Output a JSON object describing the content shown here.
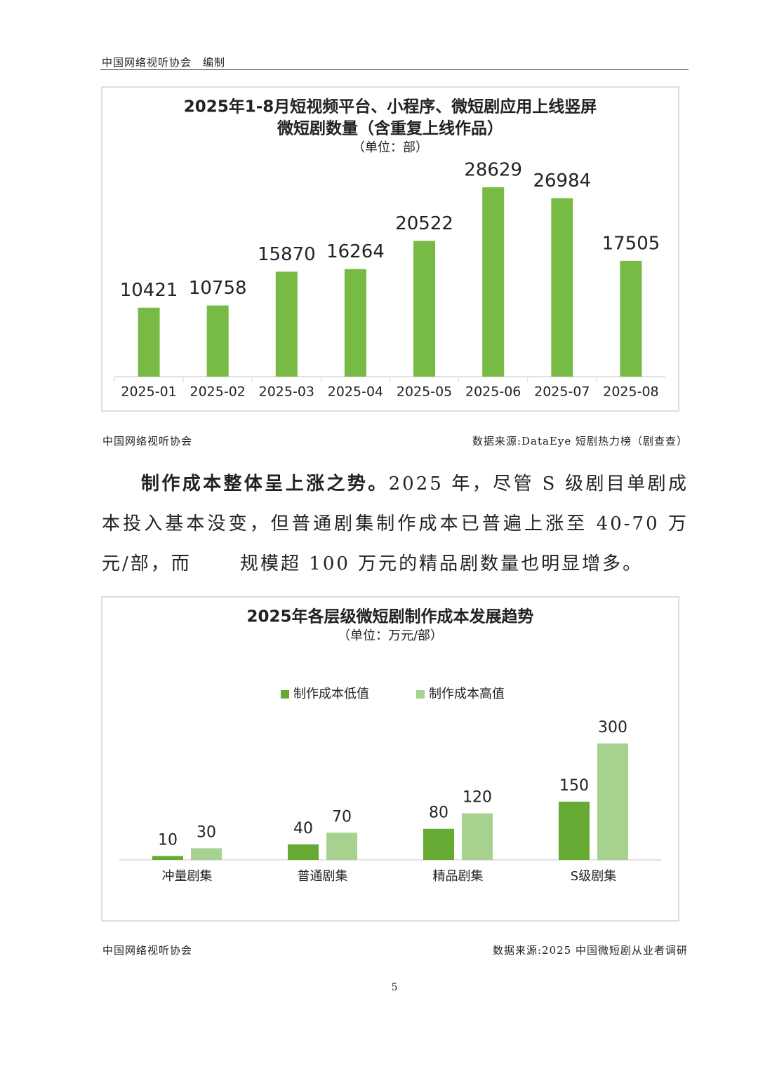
{
  "header": "中国网络视听协会　编制",
  "chart_data": [
    {
      "type": "bar",
      "title": [
        "2025年1-8月短视频平台、小程序、微短剧应用上线竖屏",
        "微短剧数量（含重复上线作品）"
      ],
      "subtitle": "（单位：部）",
      "categories": [
        "2025-01",
        "2025-02",
        "2025-03",
        "2025-04",
        "2025-05",
        "2025-06",
        "2025-07",
        "2025-08"
      ],
      "values": [
        10421,
        10758,
        15870,
        16264,
        20522,
        28629,
        26984,
        17505
      ],
      "color": "#77bb44"
    },
    {
      "type": "bar",
      "title": [
        "2025年各层级微短剧制作成本发展趋势"
      ],
      "subtitle": "（单位：万元/部）",
      "categories": [
        "冲量剧集",
        "普通剧集",
        "精品剧集",
        "S级剧集"
      ],
      "series": [
        {
          "name": "制作成本低值",
          "color": "#66aa33",
          "values": [
            10,
            40,
            80,
            150
          ]
        },
        {
          "name": "制作成本高值",
          "color": "#a6d18e",
          "values": [
            30,
            70,
            120,
            300
          ]
        }
      ],
      "legend": "top"
    }
  ],
  "captions": [
    {
      "org": "中国网络视听协会",
      "source": "数据来源:DataEye 短剧热力榜（剧查查）"
    },
    {
      "org": "中国网络视听协会",
      "source": "数据来源:2025 中国微短剧从业者调研"
    }
  ],
  "paragraph": {
    "lead": "制作成本整体呈上涨之势。",
    "body": "2025 年，尽管 S 级剧目单剧成本投入基本没变，但普通剧集制作成本已普遍上涨至 40-70 万元/部，而　　 规模超 100 万元的精品剧数量也明显增多。"
  },
  "page_number": "5"
}
